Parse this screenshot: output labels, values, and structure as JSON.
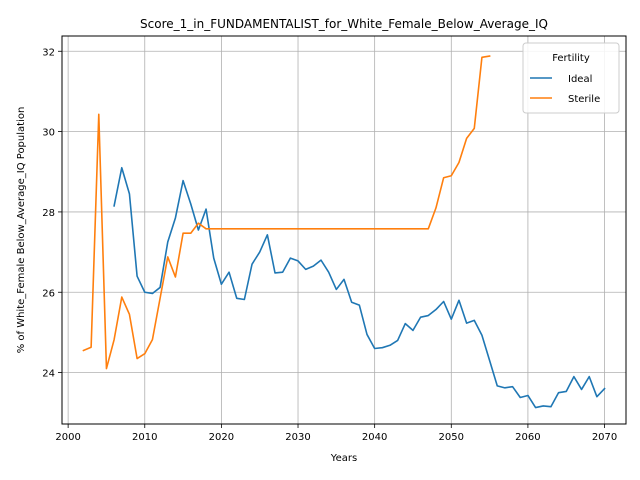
{
  "chart_data": {
    "type": "line",
    "title": "Score_1_in_FUNDAMENTALIST_for_White_Female_Below_Average_IQ",
    "xlabel": "Years",
    "ylabel": "% of White_Female Below_Average_IQ Population",
    "xlim": [
      1999.2,
      2072.8
    ],
    "ylim": [
      22.72,
      32.38
    ],
    "xticks": [
      2000,
      2010,
      2020,
      2030,
      2040,
      2050,
      2060,
      2070
    ],
    "yticks": [
      24,
      26,
      28,
      30,
      32
    ],
    "grid": true,
    "legend": {
      "title": "Fertility",
      "position": "top-right"
    },
    "series": [
      {
        "name": "Ideal",
        "color": "#1f77b4",
        "x": [
          2006,
          2007,
          2008,
          2009,
          2010,
          2011,
          2012,
          2013,
          2014,
          2015,
          2016,
          2017,
          2018,
          2019,
          2020,
          2021,
          2022,
          2023,
          2024,
          2025,
          2026,
          2027,
          2028,
          2029,
          2030,
          2031,
          2032,
          2033,
          2034,
          2035,
          2036,
          2037,
          2038,
          2039,
          2040,
          2041,
          2042,
          2043,
          2044,
          2045,
          2046,
          2047,
          2048,
          2049,
          2050,
          2051,
          2052,
          2053,
          2054,
          2055,
          2056,
          2057,
          2058,
          2059,
          2060,
          2061,
          2062,
          2063,
          2064,
          2065,
          2066,
          2067,
          2068,
          2069,
          2070
        ],
        "y": [
          28.15,
          29.1,
          28.45,
          26.4,
          26.0,
          25.97,
          26.12,
          27.25,
          27.85,
          28.78,
          28.2,
          27.55,
          28.07,
          26.85,
          26.2,
          26.5,
          25.85,
          25.82,
          26.7,
          27.0,
          27.43,
          26.48,
          26.5,
          26.85,
          26.78,
          26.57,
          26.65,
          26.8,
          26.5,
          26.07,
          26.32,
          25.75,
          25.68,
          24.95,
          24.6,
          24.62,
          24.68,
          24.8,
          25.22,
          25.05,
          25.38,
          25.42,
          25.57,
          25.77,
          25.33,
          25.8,
          25.23,
          25.3,
          24.93,
          24.3,
          23.67,
          23.62,
          23.65,
          23.38,
          23.43,
          23.13,
          23.17,
          23.15,
          23.5,
          23.53,
          23.9,
          23.58,
          23.9,
          23.4,
          23.6
        ]
      },
      {
        "name": "Sterile",
        "color": "#ff7f0e",
        "x": [
          2002,
          2003,
          2004,
          2005,
          2006,
          2007,
          2008,
          2009,
          2010,
          2011,
          2012,
          2013,
          2014,
          2015,
          2016,
          2017,
          2018,
          2019,
          2020,
          2021,
          2022,
          2023,
          2024,
          2025,
          2026,
          2027,
          2028,
          2029,
          2030,
          2031,
          2032,
          2033,
          2034,
          2035,
          2036,
          2037,
          2038,
          2039,
          2040,
          2041,
          2042,
          2043,
          2044,
          2045,
          2046,
          2047,
          2048,
          2049,
          2050,
          2051,
          2052,
          2053,
          2054,
          2055
        ],
        "y": [
          24.55,
          24.63,
          30.43,
          24.1,
          24.82,
          25.88,
          25.45,
          24.35,
          24.47,
          24.82,
          25.85,
          26.88,
          26.38,
          27.47,
          27.47,
          27.72,
          27.58,
          27.58,
          27.58,
          27.58,
          27.58,
          27.58,
          27.58,
          27.58,
          27.58,
          27.58,
          27.58,
          27.58,
          27.58,
          27.58,
          27.58,
          27.58,
          27.58,
          27.58,
          27.58,
          27.58,
          27.58,
          27.58,
          27.58,
          27.58,
          27.58,
          27.58,
          27.58,
          27.58,
          27.58,
          27.58,
          28.1,
          28.85,
          28.9,
          29.23,
          29.83,
          30.08,
          31.85,
          31.88
        ]
      }
    ]
  }
}
